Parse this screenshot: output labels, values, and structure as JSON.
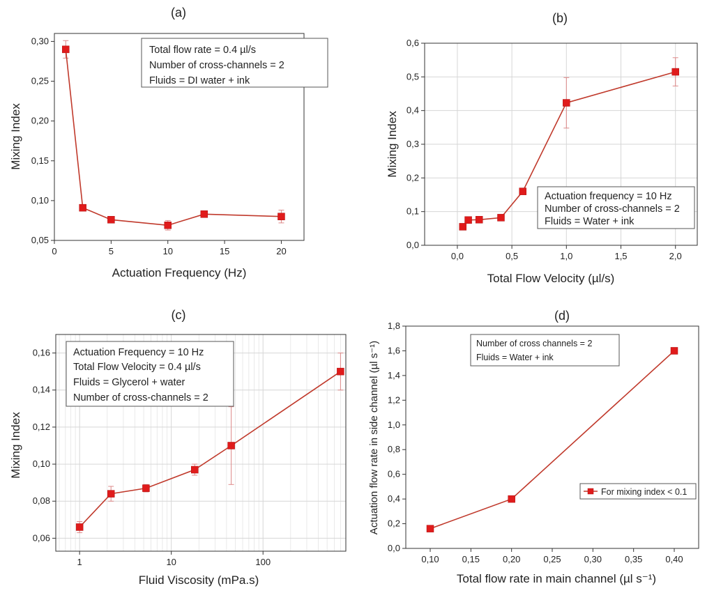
{
  "chart_data": [
    {
      "panel": "(a)",
      "type": "line",
      "xlabel": "Actuation Frequency (Hz)",
      "ylabel": "Mixing Index",
      "xlim": [
        0,
        22
      ],
      "ylim": [
        0.05,
        0.31
      ],
      "xticks": [
        0,
        5,
        10,
        15,
        20
      ],
      "yticks": [
        0.05,
        0.1,
        0.15,
        0.2,
        0.25,
        0.3
      ],
      "xtick_labels": [
        "0",
        "5",
        "10",
        "15",
        "20"
      ],
      "ytick_labels": [
        "0,05",
        "0,10",
        "0,15",
        "0,20",
        "0,25",
        "0,30"
      ],
      "grid": false,
      "annotations": [
        "Total flow rate = 0.4 µl/s",
        "Number of cross-channels = 2",
        "Fluids = DI water + ink"
      ],
      "series": [
        {
          "x": [
            1,
            2.5,
            5,
            10,
            13.2,
            20
          ],
          "y": [
            0.29,
            0.091,
            0.076,
            0.069,
            0.083,
            0.08
          ],
          "err": [
            0.011,
            0.003,
            0.002,
            0.006,
            0.004,
            0.008
          ]
        }
      ]
    },
    {
      "panel": "(b)",
      "type": "line",
      "xlabel": "Total Flow Velocity (µl/s)",
      "ylabel": "Mixing Index",
      "xlim": [
        -0.3,
        2.2
      ],
      "ylim": [
        0,
        0.6
      ],
      "xticks": [
        0,
        0.5,
        1.0,
        1.5,
        2.0
      ],
      "yticks": [
        0,
        0.1,
        0.2,
        0.3,
        0.4,
        0.5,
        0.6
      ],
      "xtick_labels": [
        "0,0",
        "0,5",
        "1,0",
        "1,5",
        "2,0"
      ],
      "ytick_labels": [
        "0,0",
        "0,1",
        "0,2",
        "0,3",
        "0,4",
        "0,5",
        "0,6"
      ],
      "grid": true,
      "annotations": [
        "Actuation frequency = 10 Hz",
        "Number of cross-channels = 2",
        "Fluids = Water + ink"
      ],
      "series": [
        {
          "x": [
            0.05,
            0.1,
            0.2,
            0.4,
            0.6,
            1.0,
            2.0
          ],
          "y": [
            0.055,
            0.075,
            0.076,
            0.082,
            0.16,
            0.423,
            0.515
          ],
          "err": [
            0,
            0,
            0,
            0,
            0,
            0.075,
            0.042
          ]
        }
      ]
    },
    {
      "panel": "(c)",
      "type": "line",
      "xscale": "log",
      "xlabel": "Fluid Viscosity (mPa.s)",
      "ylabel": "Mixing Index",
      "xlim": [
        0.55,
        800
      ],
      "ylim": [
        0.053,
        0.17
      ],
      "xticks": [
        1,
        10,
        100
      ],
      "yticks": [
        0.06,
        0.08,
        0.1,
        0.12,
        0.14,
        0.16
      ],
      "xtick_labels": [
        "1",
        "10",
        "100"
      ],
      "ytick_labels": [
        "0,06",
        "0,08",
        "0,10",
        "0,12",
        "0,14",
        "0,16"
      ],
      "grid": true,
      "annotations": [
        "Actuation Frequency = 10 Hz",
        "Total Flow Velocity = 0.4 µl/s",
        "Fluids = Glycerol + water",
        "Number of cross-channels = 2"
      ],
      "series": [
        {
          "x": [
            1,
            2.2,
            5.3,
            18,
            45,
            700
          ],
          "y": [
            0.066,
            0.084,
            0.087,
            0.097,
            0.11,
            0.15
          ],
          "err": [
            0.003,
            0.004,
            0.002,
            0.003,
            0.021,
            0.01
          ]
        }
      ]
    },
    {
      "panel": "(d)",
      "type": "line",
      "xlabel": "Total flow rate in main channel (µl s⁻¹)",
      "ylabel": "Actuation flow rate in side channel (µl s⁻¹)",
      "xlim": [
        0.07,
        0.43
      ],
      "ylim": [
        0,
        1.8
      ],
      "xticks": [
        0.1,
        0.15,
        0.2,
        0.25,
        0.3,
        0.35,
        0.4
      ],
      "yticks": [
        0,
        0.2,
        0.4,
        0.6,
        0.8,
        1.0,
        1.2,
        1.4,
        1.6,
        1.8
      ],
      "xtick_labels": [
        "0,10",
        "0,15",
        "0,20",
        "0,25",
        "0,30",
        "0,35",
        "0,40"
      ],
      "ytick_labels": [
        "0,0",
        "0,2",
        "0,4",
        "0,6",
        "0,8",
        "1,0",
        "1,2",
        "1,4",
        "1,6",
        "1,8"
      ],
      "grid": false,
      "annotations": [
        "Number of cross channels = 2",
        "Fluids = Water + ink"
      ],
      "legend": "For mixing index < 0.1",
      "series": [
        {
          "name": "For mixing index < 0.1",
          "x": [
            0.1,
            0.2,
            0.4
          ],
          "y": [
            0.16,
            0.4,
            1.6
          ],
          "err": [
            0,
            0,
            0
          ]
        }
      ]
    }
  ],
  "colors": {
    "series": "#c0392b",
    "marker": "#e01b1b",
    "errorbar": "#dd8888",
    "grid": "#d6d6d6"
  }
}
